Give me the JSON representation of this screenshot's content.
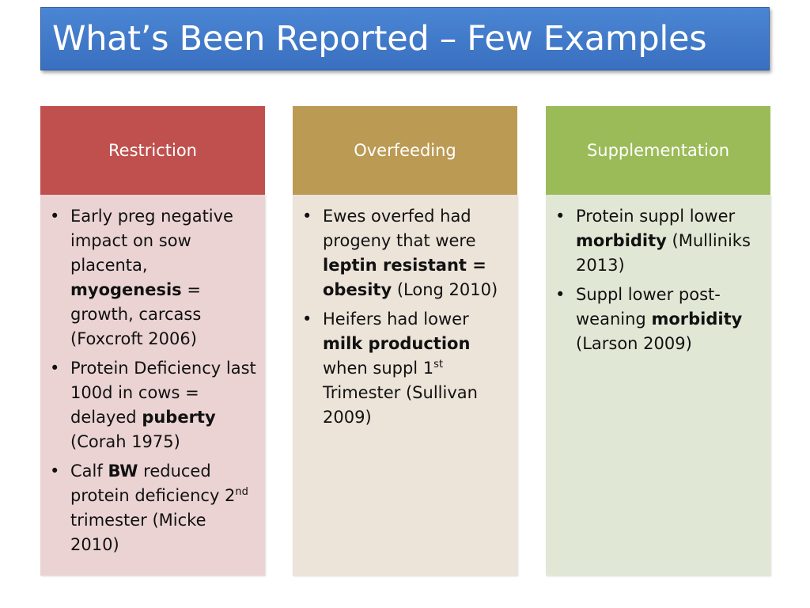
{
  "title": "What’s Been Reported – Few Examples",
  "bullet_char": "•",
  "columns": [
    {
      "header": "Restriction",
      "items": [
        {
          "a": "Early preg negative impact on sow placenta, ",
          "b": "myogenesis",
          "c": " = growth, carcass (Foxcroft 2006)"
        },
        {
          "a": "Protein Deficiency last 100d in cows = delayed ",
          "b": "puberty",
          "c": " (Corah 1975)"
        },
        {
          "a": "Calf ",
          "b": "BW",
          "c": " reduced protein deficiency 2",
          "sup": "nd",
          "d": " trimester (Micke 2010)"
        }
      ]
    },
    {
      "header": "Overfeeding",
      "items": [
        {
          "a": "Ewes overfed had progeny that were ",
          "b": "leptin resistant = obesity",
          "c": " (Long 2010)"
        },
        {
          "a": "Heifers had lower ",
          "b": "milk production",
          "c": " when suppl 1",
          "sup": "st",
          "d": " Trimester (Sullivan 2009)"
        }
      ]
    },
    {
      "header": "Supplementation",
      "items": [
        {
          "a": "Protein suppl lower ",
          "b": "morbidity",
          "c": " (Mulliniks 2013)"
        },
        {
          "a": "Suppl lower post-weaning ",
          "b": "morbidity",
          "c": " (Larson 2009)"
        }
      ]
    }
  ]
}
